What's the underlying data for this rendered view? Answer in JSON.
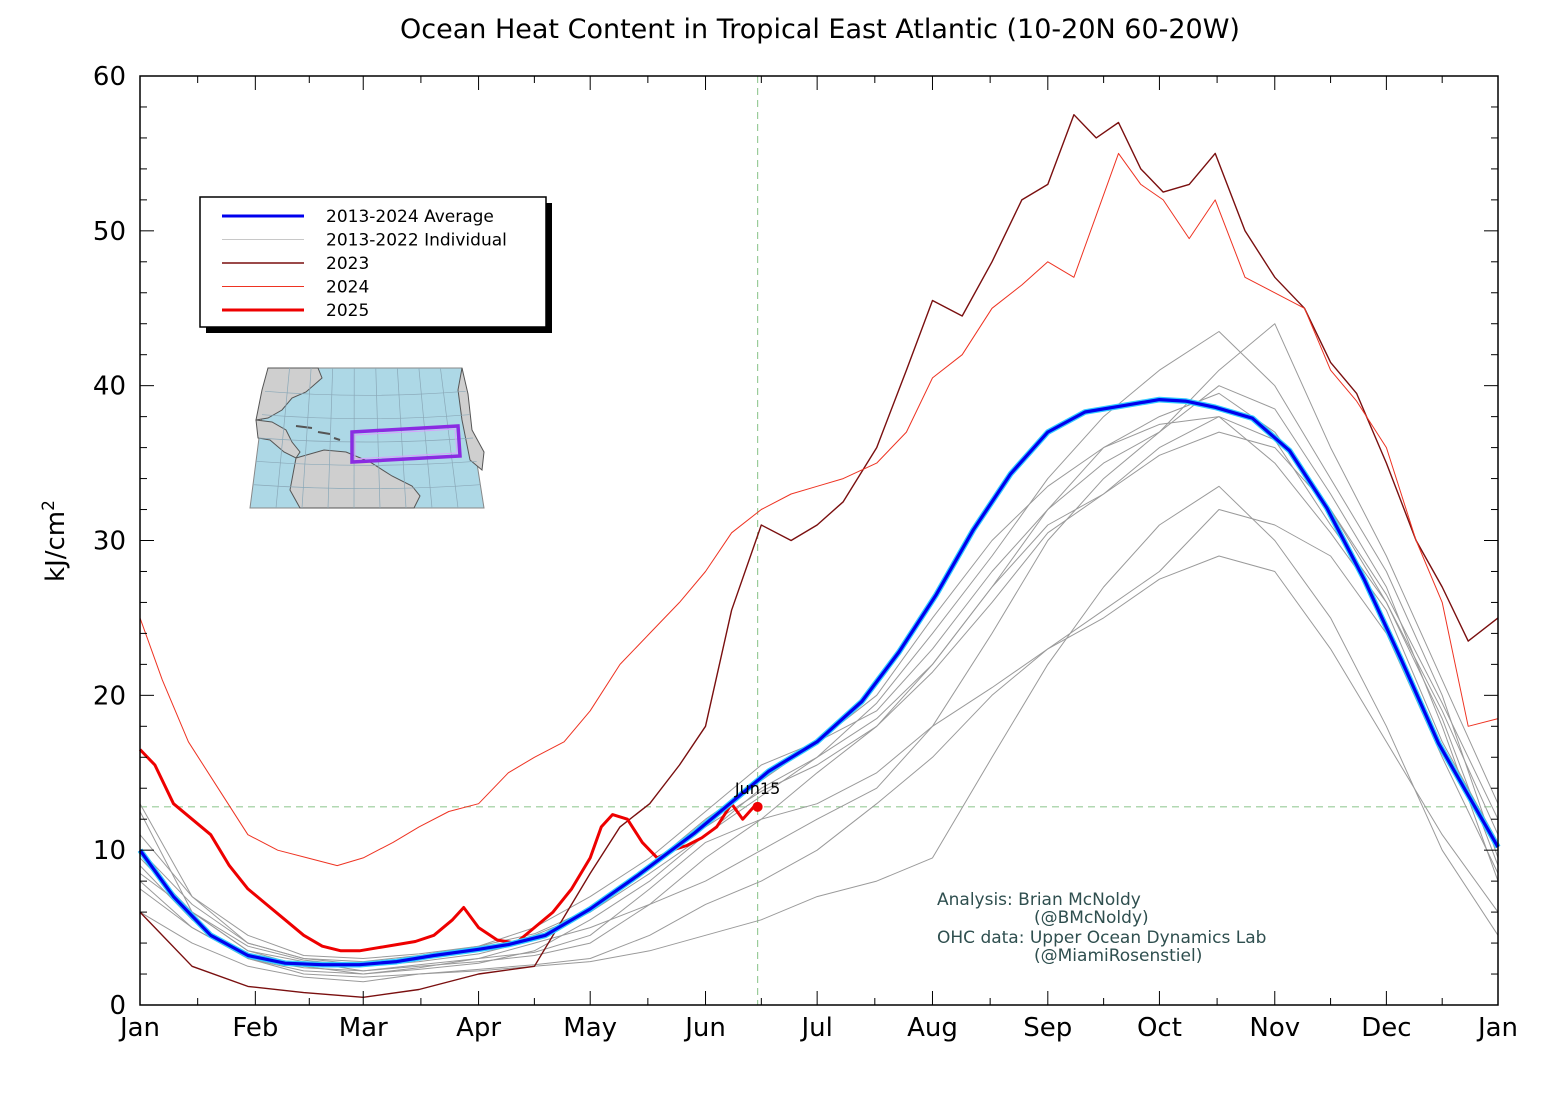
{
  "chart_data": {
    "type": "line",
    "title": "Ocean Heat Content in Tropical East Atlantic (10-20N 60-20W)",
    "ylabel": "kJ/cm",
    "ylabel_superscript": "2",
    "ylim": [
      0,
      60
    ],
    "yticks": [
      0,
      10,
      20,
      30,
      40,
      50,
      60
    ],
    "xlim": [
      1,
      366
    ],
    "xticks": [
      {
        "day": 1,
        "label": "Jan"
      },
      {
        "day": 32,
        "label": "Feb"
      },
      {
        "day": 61,
        "label": "Mar"
      },
      {
        "day": 92,
        "label": "Apr"
      },
      {
        "day": 122,
        "label": "May"
      },
      {
        "day": 153,
        "label": "Jun"
      },
      {
        "day": 183,
        "label": "Jul"
      },
      {
        "day": 214,
        "label": "Aug"
      },
      {
        "day": 245,
        "label": "Sep"
      },
      {
        "day": 275,
        "label": "Oct"
      },
      {
        "day": 306,
        "label": "Nov"
      },
      {
        "day": 336,
        "label": "Dec"
      },
      {
        "day": 366,
        "label": "Jan"
      }
    ],
    "grid": false,
    "legend_position": "top-left",
    "reference": {
      "x_day": 167,
      "y": 12.8,
      "label": "Jun15"
    },
    "series": [
      {
        "name": "2013-2024 Average",
        "color": "#0000ee",
        "glow": "#33ccff",
        "width": 3.2,
        "x": [
          1,
          10,
          20,
          30,
          40,
          50,
          60,
          70,
          80,
          92,
          100,
          110,
          122,
          135,
          150,
          160,
          170,
          183,
          195,
          205,
          215,
          225,
          235,
          245,
          255,
          265,
          275,
          282,
          290,
          300,
          310,
          320,
          330,
          340,
          350,
          366
        ],
        "y": [
          10.0,
          7.0,
          4.5,
          3.2,
          2.7,
          2.6,
          2.6,
          2.8,
          3.2,
          3.6,
          3.9,
          4.5,
          6.2,
          8.4,
          11.1,
          13.1,
          15.1,
          17.0,
          19.6,
          22.8,
          26.5,
          30.7,
          34.3,
          37.0,
          38.3,
          38.7,
          39.1,
          39.0,
          38.6,
          37.9,
          35.8,
          32.1,
          27.5,
          22.3,
          16.9,
          10.2
        ]
      },
      {
        "name": "2013-2022 Individual",
        "color": "#9a9a9a",
        "width": 1,
        "x": [
          1,
          15,
          30,
          45,
          61,
          76,
          92,
          107,
          122,
          138,
          153,
          168,
          183,
          199,
          214,
          230,
          245,
          260,
          275,
          291,
          306,
          321,
          336,
          351,
          366
        ],
        "y": [
          8.5,
          6.0,
          3.5,
          2.8,
          2.2,
          2.5,
          2.8,
          3.2,
          4.0,
          6.5,
          9.5,
          12.0,
          15.0,
          18.0,
          22.0,
          27.0,
          31.0,
          33.0,
          36.0,
          38.0,
          36.5,
          31.0,
          26.0,
          19.0,
          11.0
        ]
      },
      {
        "name": "2013-2022 Individual",
        "color": "#9a9a9a",
        "width": 1,
        "x": [
          1,
          15,
          30,
          45,
          61,
          76,
          92,
          107,
          122,
          138,
          153,
          168,
          183,
          199,
          214,
          230,
          245,
          260,
          275,
          291,
          306,
          321,
          336,
          351,
          366
        ],
        "y": [
          12.5,
          6.0,
          3.5,
          2.5,
          2.0,
          2.3,
          2.7,
          3.5,
          5.5,
          8.0,
          11.0,
          14.0,
          16.0,
          19.5,
          24.0,
          29.0,
          34.0,
          38.0,
          41.0,
          43.5,
          40.0,
          34.0,
          28.0,
          20.0,
          9.5
        ]
      },
      {
        "name": "2013-2022 Individual",
        "color": "#9a9a9a",
        "width": 1,
        "x": [
          1,
          15,
          30,
          45,
          61,
          76,
          92,
          107,
          122,
          138,
          153,
          168,
          183,
          199,
          214,
          230,
          245,
          260,
          275,
          291,
          306,
          321,
          336,
          351,
          366
        ],
        "y": [
          6.0,
          4.0,
          2.5,
          1.8,
          1.5,
          2.0,
          2.3,
          2.6,
          3.0,
          4.5,
          6.5,
          8.0,
          10.0,
          13.0,
          16.0,
          20.0,
          23.0,
          25.0,
          27.5,
          29.0,
          28.0,
          23.0,
          17.0,
          11.0,
          6.0
        ]
      },
      {
        "name": "2013-2022 Individual",
        "color": "#9a9a9a",
        "width": 1,
        "x": [
          1,
          15,
          30,
          45,
          61,
          76,
          92,
          107,
          122,
          138,
          153,
          168,
          183,
          199,
          214,
          230,
          245,
          260,
          275,
          291,
          306,
          321,
          336,
          351,
          366
        ],
        "y": [
          11.0,
          7.0,
          4.5,
          3.2,
          3.0,
          3.3,
          3.8,
          5.0,
          7.0,
          9.5,
          12.5,
          15.5,
          17.0,
          20.0,
          25.0,
          30.0,
          33.5,
          36.0,
          38.0,
          39.5,
          37.0,
          32.0,
          26.5,
          19.5,
          12.0
        ]
      },
      {
        "name": "2013-2022 Individual",
        "color": "#9a9a9a",
        "width": 1,
        "x": [
          1,
          15,
          30,
          45,
          61,
          76,
          92,
          107,
          122,
          138,
          153,
          168,
          183,
          199,
          214,
          230,
          245,
          260,
          275,
          291,
          306,
          321,
          336,
          351,
          366
        ],
        "y": [
          9.0,
          5.5,
          3.0,
          2.2,
          2.0,
          2.4,
          3.0,
          4.0,
          5.0,
          6.5,
          8.0,
          10.0,
          12.0,
          14.0,
          18.0,
          24.0,
          30.0,
          34.0,
          37.0,
          40.0,
          38.5,
          33.0,
          27.0,
          18.0,
          8.0
        ]
      },
      {
        "name": "2013-2022 Individual",
        "color": "#9a9a9a",
        "width": 1,
        "x": [
          1,
          15,
          30,
          45,
          61,
          76,
          92,
          107,
          122,
          138,
          153,
          168,
          183,
          199,
          214,
          230,
          245,
          260,
          275,
          291,
          306,
          321,
          336,
          351,
          366
        ],
        "y": [
          7.5,
          5.0,
          3.0,
          2.0,
          1.8,
          2.0,
          2.2,
          2.5,
          2.8,
          3.5,
          4.5,
          5.5,
          7.0,
          8.0,
          9.5,
          16.0,
          22.0,
          27.0,
          31.0,
          33.5,
          30.0,
          25.0,
          18.0,
          10.0,
          4.5
        ]
      },
      {
        "name": "2013-2022 Individual",
        "color": "#9a9a9a",
        "width": 1,
        "x": [
          1,
          15,
          30,
          45,
          61,
          76,
          92,
          107,
          122,
          138,
          153,
          168,
          183,
          199,
          214,
          230,
          245,
          260,
          275,
          291,
          306,
          321,
          336,
          351,
          366
        ],
        "y": [
          10.0,
          6.5,
          4.0,
          3.0,
          2.6,
          3.0,
          3.5,
          4.5,
          6.0,
          8.5,
          11.0,
          13.5,
          16.0,
          18.5,
          22.0,
          27.0,
          32.0,
          36.0,
          37.5,
          38.0,
          35.0,
          30.5,
          25.5,
          17.0,
          10.5
        ]
      },
      {
        "name": "2013-2022 Individual",
        "color": "#9a9a9a",
        "width": 1,
        "x": [
          1,
          15,
          30,
          45,
          61,
          76,
          92,
          107,
          122,
          138,
          153,
          168,
          183,
          199,
          214,
          230,
          245,
          260,
          275,
          291,
          306,
          321,
          336,
          351,
          366
        ],
        "y": [
          8.0,
          5.0,
          3.0,
          2.4,
          2.2,
          2.6,
          3.0,
          3.4,
          4.5,
          7.5,
          10.5,
          12.0,
          13.0,
          15.0,
          18.0,
          20.5,
          23.0,
          25.5,
          28.0,
          32.0,
          31.0,
          29.0,
          24.0,
          16.0,
          8.5
        ]
      },
      {
        "name": "2013-2022 Individual",
        "color": "#9a9a9a",
        "width": 1,
        "x": [
          1,
          15,
          30,
          45,
          61,
          76,
          92,
          107,
          122,
          138,
          153,
          168,
          183,
          199,
          214,
          230,
          245,
          260,
          275,
          291,
          306,
          321,
          336,
          351,
          366
        ],
        "y": [
          13.0,
          7.0,
          4.0,
          3.0,
          2.8,
          3.2,
          3.8,
          4.6,
          6.2,
          9.0,
          12.0,
          14.5,
          17.0,
          19.0,
          23.0,
          28.0,
          32.0,
          35.0,
          37.0,
          41.0,
          44.0,
          36.0,
          29.0,
          21.0,
          13.0
        ]
      },
      {
        "name": "2013-2022 Individual",
        "color": "#9a9a9a",
        "width": 1,
        "x": [
          1,
          15,
          30,
          45,
          61,
          76,
          92,
          107,
          122,
          138,
          153,
          168,
          183,
          199,
          214,
          230,
          245,
          260,
          275,
          291,
          306,
          321,
          336,
          351,
          366
        ],
        "y": [
          9.5,
          6.0,
          3.8,
          2.9,
          2.5,
          2.8,
          3.3,
          4.2,
          6.0,
          8.8,
          11.5,
          13.8,
          15.5,
          18.0,
          21.5,
          26.0,
          30.5,
          33.0,
          35.5,
          37.0,
          36.0,
          32.0,
          26.0,
          18.5,
          9.0
        ]
      },
      {
        "name": "2023",
        "color": "#7a0f0f",
        "width": 1.4,
        "x": [
          1,
          15,
          30,
          45,
          61,
          76,
          92,
          107,
          122,
          130,
          138,
          146,
          153,
          160,
          168,
          176,
          183,
          190,
          199,
          207,
          214,
          222,
          230,
          238,
          245,
          252,
          258,
          264,
          270,
          276,
          283,
          290,
          298,
          306,
          314,
          321,
          328,
          336,
          344,
          351,
          358,
          366
        ],
        "y": [
          6.0,
          2.5,
          1.2,
          0.8,
          0.5,
          1.0,
          2.0,
          2.5,
          8.5,
          11.5,
          13.0,
          15.5,
          18.0,
          25.5,
          31.0,
          30.0,
          31.0,
          32.5,
          36.0,
          41.0,
          45.5,
          44.5,
          48.0,
          52.0,
          53.0,
          57.5,
          56.0,
          57.0,
          54.0,
          52.5,
          53.0,
          55.0,
          50.0,
          47.0,
          45.0,
          41.5,
          39.5,
          35.0,
          30.0,
          27.0,
          23.5,
          25.0
        ]
      },
      {
        "name": "2024",
        "color": "#ee3322",
        "width": 1,
        "x": [
          1,
          7,
          14,
          22,
          30,
          38,
          46,
          54,
          61,
          69,
          76,
          84,
          92,
          100,
          107,
          115,
          122,
          130,
          138,
          146,
          153,
          160,
          168,
          176,
          183,
          190,
          199,
          207,
          214,
          222,
          230,
          238,
          245,
          252,
          258,
          264,
          270,
          276,
          283,
          290,
          298,
          306,
          314,
          321,
          328,
          336,
          344,
          351,
          358,
          366
        ],
        "y": [
          25.0,
          21.0,
          17.0,
          14.0,
          11.0,
          10.0,
          9.5,
          9.0,
          9.5,
          10.5,
          11.5,
          12.5,
          13.0,
          15.0,
          16.0,
          17.0,
          19.0,
          22.0,
          24.0,
          26.0,
          28.0,
          30.5,
          32.0,
          33.0,
          33.5,
          34.0,
          35.0,
          37.0,
          40.5,
          42.0,
          45.0,
          46.5,
          48.0,
          47.0,
          51.0,
          55.0,
          53.0,
          52.0,
          49.5,
          52.0,
          47.0,
          46.0,
          45.0,
          41.0,
          39.0,
          36.0,
          30.0,
          26.0,
          18.0,
          18.5
        ]
      },
      {
        "name": "2025",
        "color": "#ee0000",
        "width": 3,
        "x": [
          1,
          5,
          10,
          15,
          20,
          25,
          30,
          35,
          40,
          45,
          50,
          55,
          60,
          65,
          70,
          75,
          80,
          85,
          88,
          92,
          97,
          102,
          107,
          112,
          117,
          122,
          125,
          128,
          132,
          136,
          140,
          144,
          148,
          152,
          156,
          160,
          163,
          166
        ],
        "y": [
          16.5,
          15.5,
          13.0,
          12.0,
          11.0,
          9.0,
          7.5,
          6.5,
          5.5,
          4.5,
          3.8,
          3.5,
          3.5,
          3.7,
          3.9,
          4.1,
          4.5,
          5.5,
          6.3,
          5.0,
          4.2,
          4.0,
          5.0,
          6.0,
          7.5,
          9.5,
          11.5,
          12.3,
          12.0,
          10.5,
          9.5,
          10.0,
          10.3,
          10.8,
          11.5,
          13.0,
          12.0,
          12.8
        ]
      }
    ],
    "legend": [
      {
        "label": "2013-2024 Average",
        "color": "#0000ee",
        "width": 3
      },
      {
        "label": "2013-2022 Individual",
        "color": "#c8c8c8",
        "width": 1
      },
      {
        "label": "2023",
        "color": "#7a0f0f",
        "width": 1.4
      },
      {
        "label": "2024",
        "color": "#ee3322",
        "width": 1
      },
      {
        "label": "2025",
        "color": "#ee0000",
        "width": 3
      }
    ],
    "annotations": [
      "Analysis: Brian McNoldy",
      "(@BMcNoldy)",
      "OHC data: Upper Ocean Dynamics Lab",
      "(@MiamiRosenstiel)"
    ]
  },
  "colors": {
    "reference_line": "#99cc99",
    "map_ocean": "#add8e6",
    "map_land": "#cfcfcf",
    "region_box": "#8a2be2",
    "credit_text": "#2f4f4f"
  }
}
